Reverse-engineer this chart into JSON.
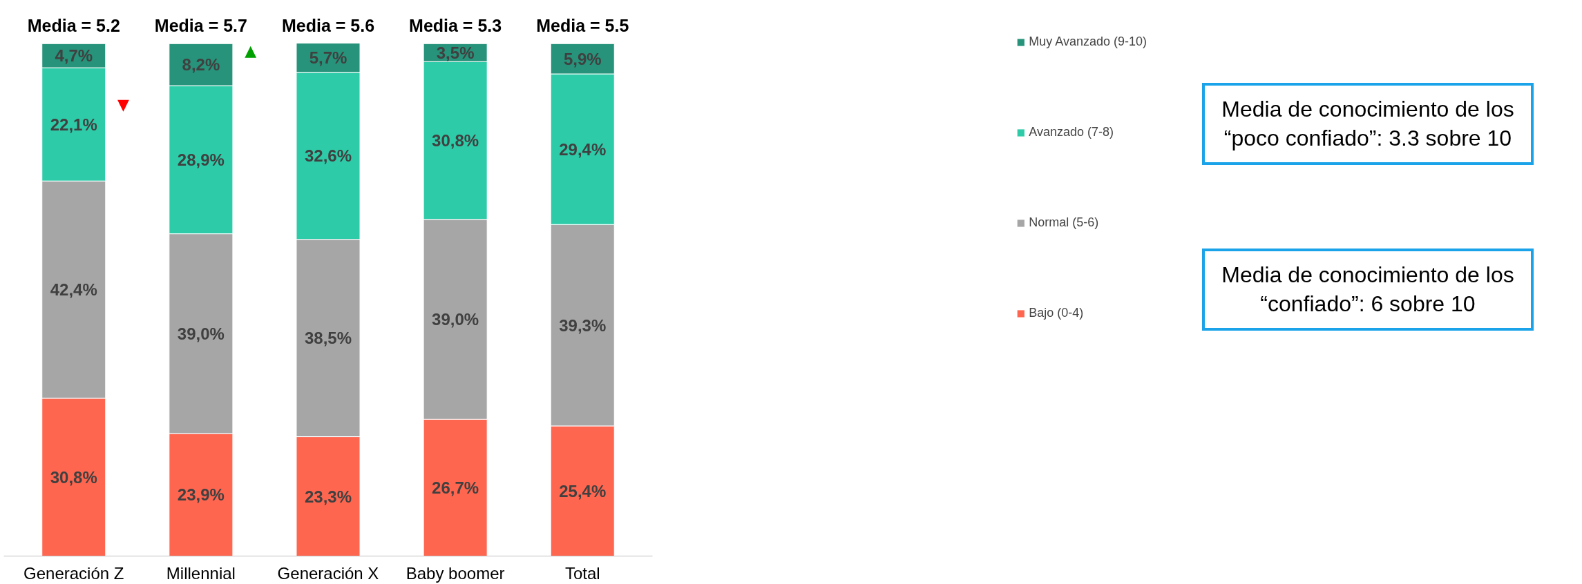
{
  "chart_data": {
    "type": "bar",
    "stacked": true,
    "categories": [
      "Generación Z",
      "Millennial",
      "Generación X",
      "Baby boomer",
      "Total"
    ],
    "series": [
      {
        "name": "Bajo (0-4)",
        "color": "#ff6650",
        "values": [
          30.8,
          23.9,
          23.3,
          26.7,
          25.4
        ],
        "value_labels": [
          "30,8%",
          "23,9%",
          "23,3%",
          "26,7%",
          "25,4%"
        ]
      },
      {
        "name": "Normal (5-6)",
        "color": "#a6a6a6",
        "values": [
          42.4,
          39.0,
          38.5,
          39.0,
          39.3
        ],
        "value_labels": [
          "42,4%",
          "39,0%",
          "38,5%",
          "39,0%",
          "39,3%"
        ]
      },
      {
        "name": "Avanzado (7-8)",
        "color": "#2ecba8",
        "values": [
          22.1,
          28.9,
          32.6,
          30.8,
          29.4
        ],
        "value_labels": [
          "22,1%",
          "28,9%",
          "32,6%",
          "30,8%",
          "29,4%"
        ]
      },
      {
        "name": "Muy Avanzado (9-10)",
        "color": "#26937a",
        "values": [
          4.7,
          8.2,
          5.7,
          3.5,
          5.9
        ],
        "value_labels": [
          "4,7%",
          "8,2%",
          "5,7%",
          "3,5%",
          "5,9%"
        ]
      }
    ],
    "annotations": [
      "Media = 5.2",
      "Media = 5.7",
      "Media = 5.6",
      "Media = 5.3",
      "Media = 5.5",
      "▼",
      "▲",
      "Media de conocimiento de los “poco confiado”: 3.3 sobre 10",
      "Media de conocimiento de los “confiado”: 6 sobre 10"
    ],
    "legend": "right",
    "tick_labels": "x",
    "grid": false
  }
}
